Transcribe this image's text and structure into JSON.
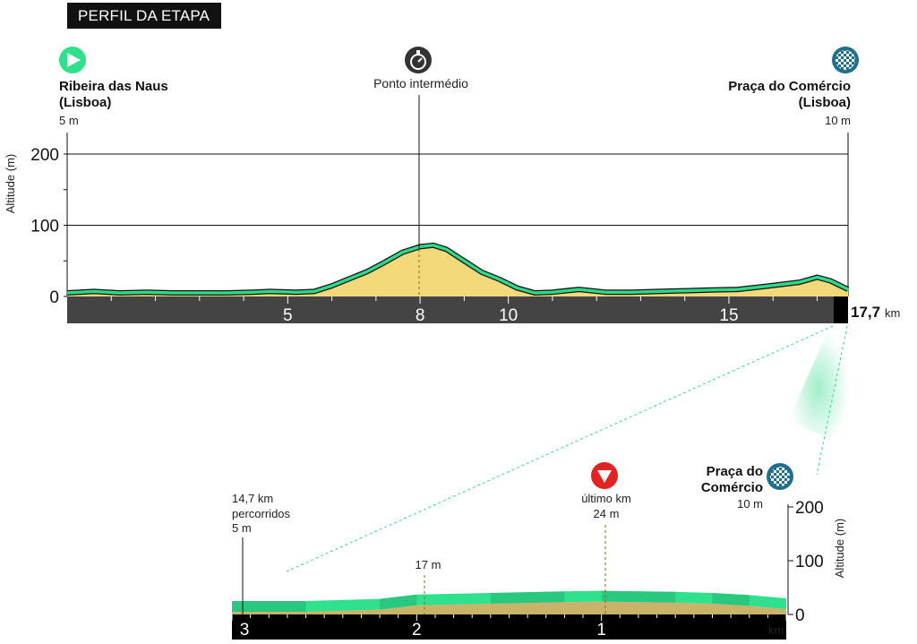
{
  "header": {
    "title": "PERFIL DA ETAPA"
  },
  "colors": {
    "profile_fill": "#f4d97a",
    "profile_line": "#2fd989",
    "outline": "#111111",
    "axis_bar": "#444444",
    "timer_icon": "#333333",
    "finish_flag": "#1f8fb5",
    "start_icon": "#2fe08d",
    "last_km_icon": "#e32222",
    "zoom_line": "#2fd989",
    "zoom_strip": "#2fe08d",
    "zoom_strip_dark": "#27b574",
    "zoom_fill": "#c9b36a"
  },
  "main_profile": {
    "start": {
      "icon": "play-icon",
      "name_line1": "Ribeira das Naus",
      "name_line2": "(Lisboa)",
      "altitude": "5 m"
    },
    "intermediate": {
      "icon": "stopwatch-icon",
      "label": "Ponto intermédio",
      "km": 8
    },
    "finish": {
      "icon": "checkered-flag-icon",
      "name_line1": "Praça do Comércio",
      "name_line2": "(Lisboa)",
      "altitude": "10 m"
    },
    "y_axis_label": "Altitude (m)",
    "total_distance": "17,7",
    "distance_unit": "km"
  },
  "zoom_profile": {
    "start_info": {
      "line1": "14,7 km",
      "line2": "percorridos",
      "line3": "5 m"
    },
    "mid_point": {
      "altitude": "17 m"
    },
    "last_km": {
      "icon": "triangle-down-icon",
      "line1": "último km",
      "line2": "24 m"
    },
    "finish": {
      "icon": "checkered-flag-icon",
      "name_line1": "Praça do",
      "name_line2": "Comércio",
      "altitude": "10 m"
    },
    "y_axis_label": "Altitude (m)",
    "unit": "km"
  },
  "chart_data": [
    {
      "type": "area",
      "title": "",
      "xlabel": "",
      "ylabel": "Altitude (m)",
      "xlim": [
        0,
        17.7
      ],
      "ylim": [
        0,
        200
      ],
      "y_ticks": [
        0,
        100,
        200
      ],
      "x_ticks": [
        5,
        8,
        10,
        15
      ],
      "grid": true,
      "x": [
        0,
        0.6,
        1.2,
        1.8,
        2.4,
        3.0,
        3.6,
        4.2,
        4.6,
        5.2,
        5.6,
        6.0,
        6.4,
        6.8,
        7.2,
        7.6,
        8.0,
        8.3,
        8.6,
        9.0,
        9.4,
        9.8,
        10.2,
        10.6,
        11.0,
        11.6,
        12.2,
        12.8,
        13.4,
        14.0,
        14.6,
        15.2,
        15.8,
        16.2,
        16.6,
        17.0,
        17.3,
        17.7
      ],
      "y": [
        5,
        7,
        5,
        6,
        5,
        5,
        5,
        6,
        7,
        6,
        7,
        15,
        25,
        35,
        48,
        62,
        70,
        72,
        66,
        50,
        34,
        24,
        12,
        5,
        6,
        10,
        6,
        6,
        7,
        8,
        9,
        10,
        14,
        17,
        20,
        27,
        22,
        10
      ]
    },
    {
      "type": "area",
      "title": "",
      "xlabel": "km",
      "ylabel": "Altitude (m)",
      "xlim": [
        3,
        0
      ],
      "ylim": [
        0,
        200
      ],
      "y_ticks": [
        0,
        100,
        200
      ],
      "x_ticks": [
        3,
        2,
        1
      ],
      "x": [
        3.0,
        2.6,
        2.2,
        2.0,
        1.6,
        1.2,
        1.0,
        0.6,
        0.4,
        0.2,
        0.0
      ],
      "y": [
        5,
        5,
        9,
        17,
        20,
        23,
        24,
        22,
        20,
        16,
        10
      ]
    }
  ]
}
